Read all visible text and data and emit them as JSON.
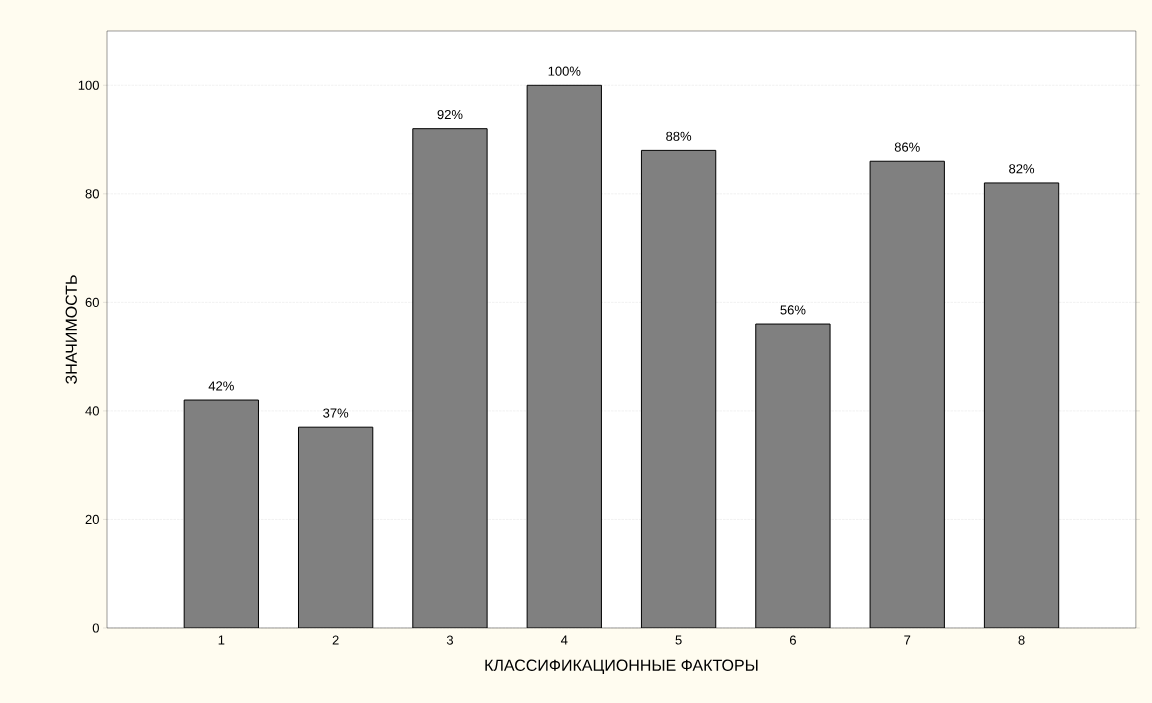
{
  "chart_data": {
    "type": "bar",
    "xlabel": "КЛАССИФИКАЦИОННЫЕ ФАКТОРЫ",
    "ylabel": "ЗНАЧИМОСТЬ",
    "categories": [
      "1",
      "2",
      "3",
      "4",
      "5",
      "6",
      "7",
      "8"
    ],
    "values": [
      42,
      37,
      92,
      100,
      88,
      56,
      86,
      82
    ],
    "value_labels": [
      "42%",
      "37%",
      "92%",
      "100%",
      "88%",
      "56%",
      "86%",
      "82%"
    ],
    "color": "#808080",
    "ylim": [
      0,
      110
    ],
    "yticks": [
      0,
      20,
      40,
      60,
      80,
      100
    ],
    "grid": "y"
  }
}
